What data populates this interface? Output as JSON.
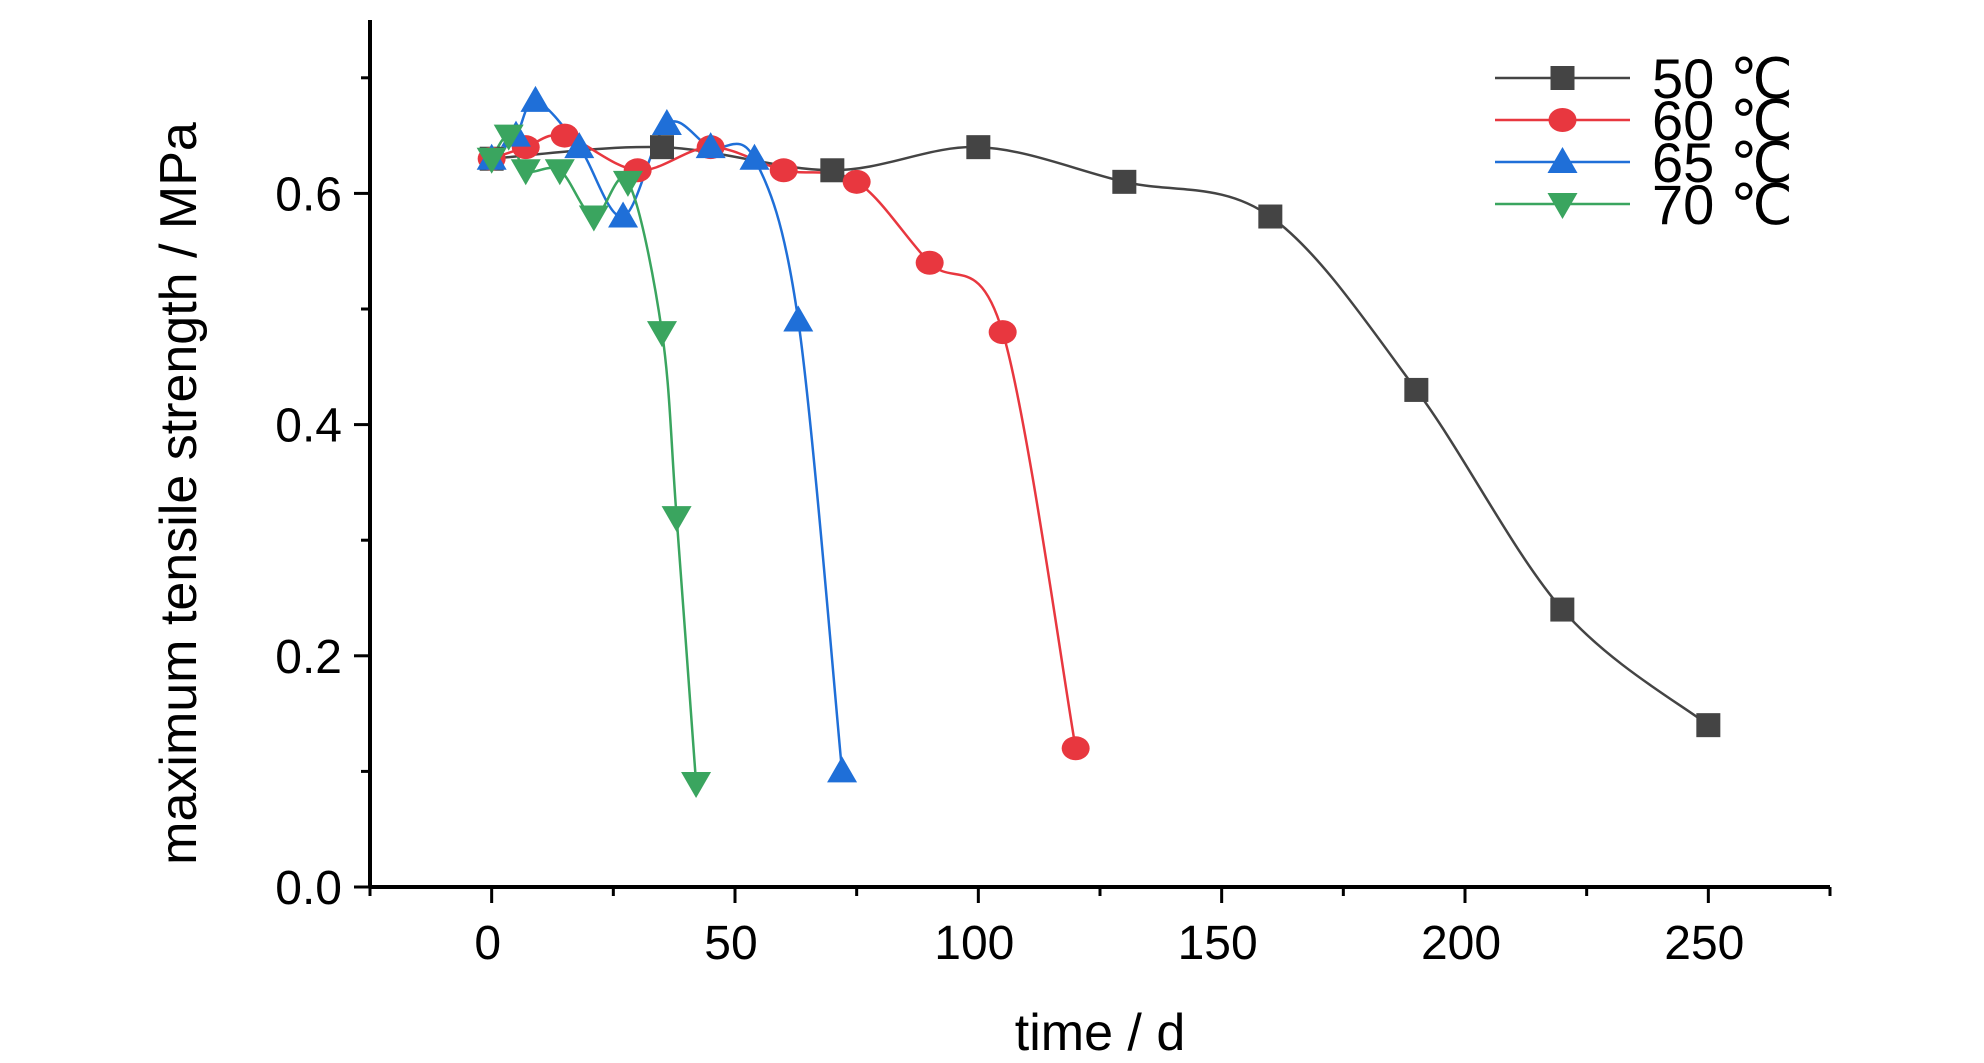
{
  "chart_data": {
    "type": "line",
    "title": "",
    "xlabel": "time / d",
    "ylabel": "maximum tensile strength / MPa",
    "xlim": [
      -25,
      275
    ],
    "ylim": [
      0,
      0.75
    ],
    "x_ticks": [
      0,
      50,
      100,
      150,
      200,
      250
    ],
    "x_tick_labels": [
      "0",
      "50",
      "100",
      "150",
      "200",
      "250"
    ],
    "y_ticks": [
      0.0,
      0.2,
      0.4,
      0.6
    ],
    "y_tick_labels": [
      "0.0",
      "0.2",
      "0.4",
      "0.6"
    ],
    "grid": false,
    "legend_position": "top-right",
    "series": [
      {
        "name": "50 ℃",
        "color": "#444444",
        "marker": "square",
        "x": [
          0,
          35,
          70,
          100,
          130,
          160,
          190,
          220,
          250
        ],
        "y": [
          0.63,
          0.64,
          0.62,
          0.64,
          0.61,
          0.58,
          0.43,
          0.24,
          0.14
        ]
      },
      {
        "name": "60 ℃",
        "color": "#e8373f",
        "marker": "circle",
        "x": [
          0,
          7,
          15,
          30,
          45,
          60,
          75,
          90,
          105,
          120
        ],
        "y": [
          0.63,
          0.64,
          0.65,
          0.62,
          0.64,
          0.62,
          0.61,
          0.54,
          0.48,
          0.12
        ]
      },
      {
        "name": "65 ℃",
        "color": "#1f6fd8",
        "marker": "triangle-up",
        "x": [
          0,
          5,
          9,
          18,
          27,
          36,
          45,
          54,
          63,
          72
        ],
        "y": [
          0.63,
          0.65,
          0.68,
          0.64,
          0.58,
          0.66,
          0.64,
          0.63,
          0.49,
          0.1
        ]
      },
      {
        "name": "70 ℃",
        "color": "#3aa55f",
        "marker": "triangle-down",
        "x": [
          0,
          3.5,
          7,
          14,
          21,
          28,
          35,
          38,
          42
        ],
        "y": [
          0.63,
          0.65,
          0.62,
          0.62,
          0.58,
          0.61,
          0.48,
          0.32,
          0.09
        ]
      }
    ]
  }
}
